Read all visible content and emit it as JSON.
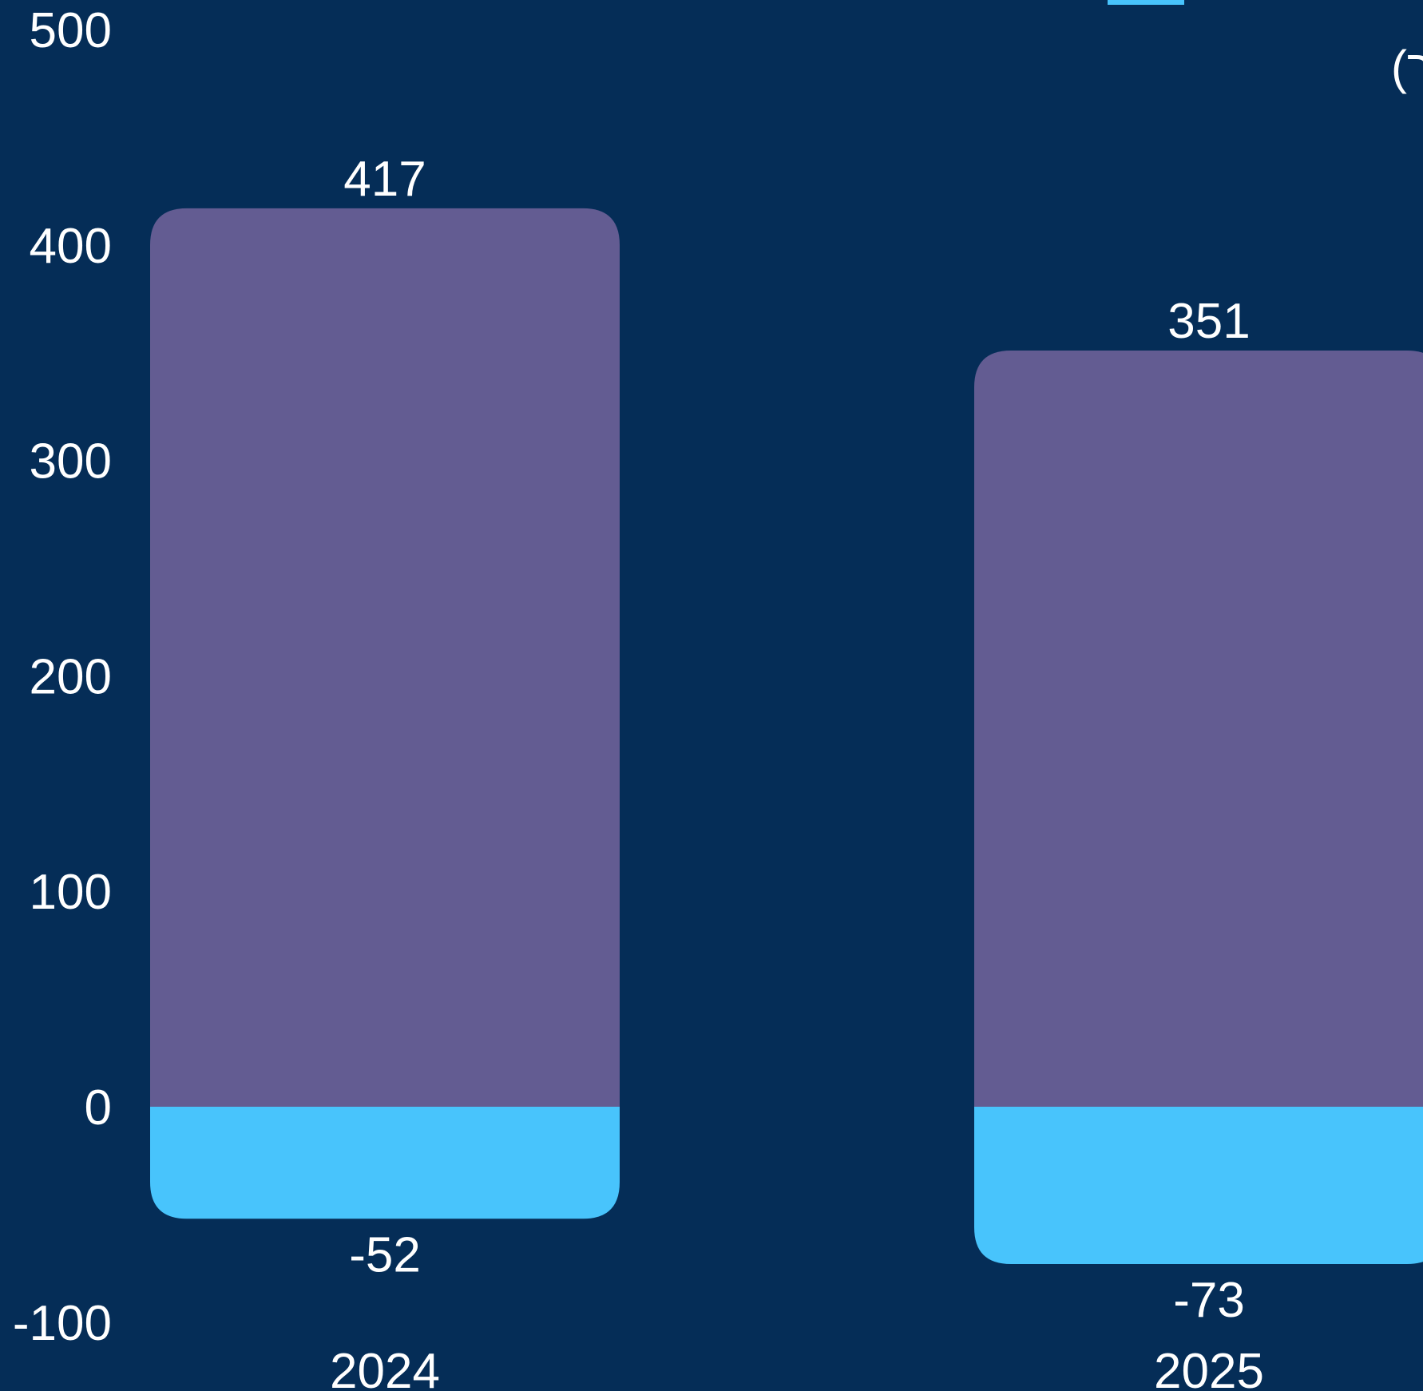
{
  "chart_data": {
    "type": "bar",
    "stacked": true,
    "categories": [
      "2024",
      "2025"
    ],
    "series": [
      {
        "values": [
          417,
          351
        ],
        "color": "#635c92"
      },
      {
        "values": [
          -52,
          -73
        ],
        "color": "#48c4fc"
      }
    ],
    "unit_label": "(אלפי דולר)",
    "ylim": [
      -100,
      500
    ],
    "yticks": [
      -100,
      0,
      100,
      200,
      300,
      400,
      500
    ],
    "grid": false,
    "legend": "top, partially cropped",
    "colors": {
      "background": "#052d57",
      "text": "#ffffff"
    }
  }
}
